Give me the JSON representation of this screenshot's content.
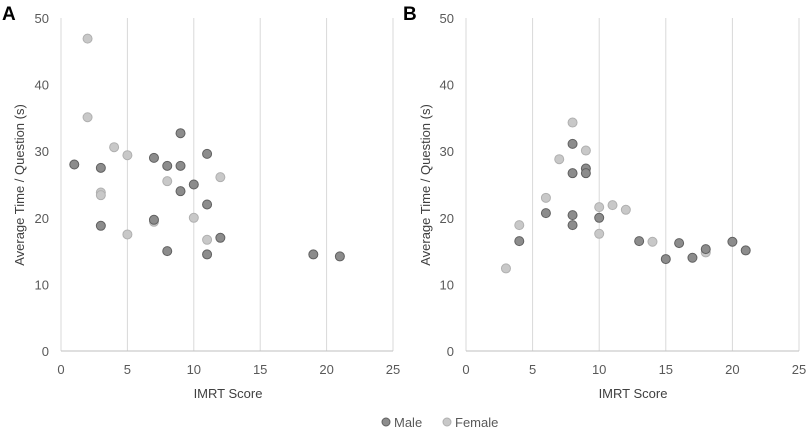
{
  "colors": {
    "male": "#8c8c8c",
    "female": "#c8c8c8",
    "male_stroke": "#606060",
    "female_stroke": "#b0b0b0",
    "grid": "#d9d9d9"
  },
  "legend": {
    "male": "Male",
    "female": "Female"
  },
  "chart_data": [
    {
      "type": "scatter",
      "panel": "A",
      "title": "",
      "xlabel": "IMRT Score",
      "ylabel": "Average Time / Question (s)",
      "xlim": [
        0,
        25
      ],
      "ylim": [
        0,
        50
      ],
      "xticks": [
        0,
        5,
        10,
        15,
        20,
        25
      ],
      "yticks": [
        0,
        10,
        20,
        30,
        40,
        50
      ],
      "grid": "vertical",
      "series": [
        {
          "name": "Male",
          "points": [
            [
              1,
              28
            ],
            [
              3,
              27.5
            ],
            [
              3,
              18.8
            ],
            [
              7,
              29
            ],
            [
              7,
              19.7
            ],
            [
              8,
              27.8
            ],
            [
              8,
              15
            ],
            [
              9,
              32.7
            ],
            [
              9,
              27.8
            ],
            [
              9,
              24
            ],
            [
              10,
              25
            ],
            [
              11,
              29.6
            ],
            [
              11,
              22
            ],
            [
              11,
              14.5
            ],
            [
              12,
              17
            ],
            [
              19,
              14.5
            ],
            [
              21,
              14.2
            ]
          ]
        },
        {
          "name": "Female",
          "points": [
            [
              2,
              46.9
            ],
            [
              2,
              35.1
            ],
            [
              3,
              23.8
            ],
            [
              3,
              23.4
            ],
            [
              4,
              30.6
            ],
            [
              5,
              29.4
            ],
            [
              5,
              17.5
            ],
            [
              7,
              19.4
            ],
            [
              8,
              25.5
            ],
            [
              10,
              20
            ],
            [
              11,
              16.7
            ],
            [
              12,
              26.1
            ]
          ]
        }
      ]
    },
    {
      "type": "scatter",
      "panel": "B",
      "title": "",
      "xlabel": "IMRT Score",
      "ylabel": "Average Time / Question (s)",
      "xlim": [
        0,
        25
      ],
      "ylim": [
        0,
        50
      ],
      "xticks": [
        0,
        5,
        10,
        15,
        20,
        25
      ],
      "yticks": [
        0,
        10,
        20,
        30,
        40,
        50
      ],
      "grid": "vertical",
      "series": [
        {
          "name": "Male",
          "points": [
            [
              4,
              16.5
            ],
            [
              6,
              20.7
            ],
            [
              8,
              31.1
            ],
            [
              8,
              26.7
            ],
            [
              8,
              20.4
            ],
            [
              8,
              18.9
            ],
            [
              9,
              27.4
            ],
            [
              9,
              26.7
            ],
            [
              10,
              20
            ],
            [
              13,
              16.5
            ],
            [
              15,
              13.8
            ],
            [
              16,
              16.2
            ],
            [
              17,
              14
            ],
            [
              18,
              15.3
            ],
            [
              20,
              16.4
            ],
            [
              21,
              15.1
            ]
          ]
        },
        {
          "name": "Female",
          "points": [
            [
              3,
              12.4
            ],
            [
              4,
              18.9
            ],
            [
              6,
              23
            ],
            [
              7,
              28.8
            ],
            [
              8,
              34.3
            ],
            [
              9,
              30.1
            ],
            [
              10,
              21.6
            ],
            [
              10,
              17.6
            ],
            [
              11,
              21.9
            ],
            [
              12,
              21.2
            ],
            [
              14,
              16.4
            ],
            [
              18,
              14.8
            ]
          ]
        }
      ]
    }
  ]
}
